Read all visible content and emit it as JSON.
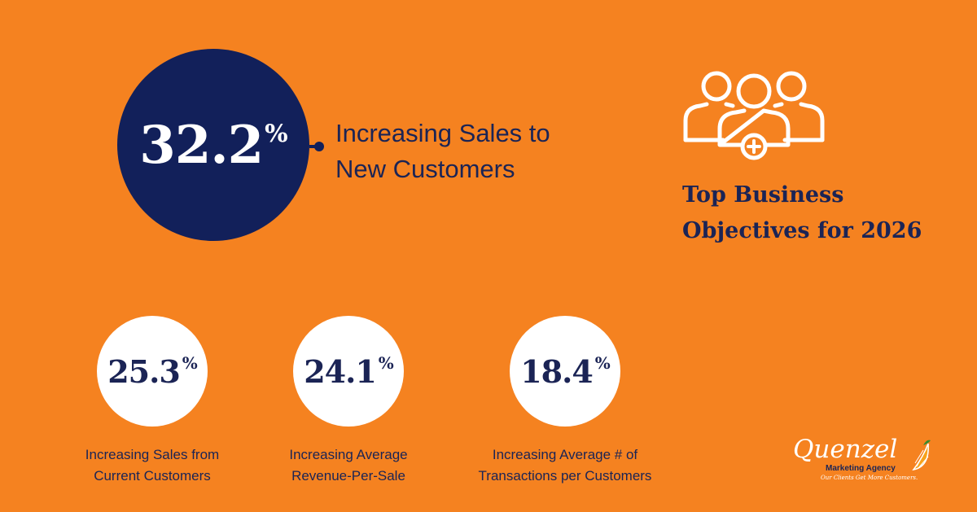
{
  "chart_data": {
    "type": "table",
    "title": "Top Business Objectives for 2026",
    "unit": "%",
    "items": [
      {
        "value": "32.2",
        "label_lines": [
          "Increasing Sales to",
          "New Customers"
        ]
      },
      {
        "value": "25.3",
        "label_lines": [
          "Increasing Sales from",
          "Current Customers"
        ]
      },
      {
        "value": "24.1",
        "label_lines": [
          "Increasing Average",
          "Revenue-Per-Sale"
        ]
      },
      {
        "value": "18.4",
        "label_lines": [
          "Increasing Average # of",
          "Transactions per Customers"
        ]
      }
    ]
  },
  "heading": {
    "line1": "Top Business",
    "line2": "Objectives for 2026"
  },
  "logo": {
    "name": "Quenzel",
    "subtitle": "Marketing Agency",
    "tagline": "Our Clients Get More Customers."
  },
  "icons": {
    "people": "people-group-add-icon",
    "orange": "orange-slice-icon"
  },
  "colors": {
    "background": "#F58220",
    "navy": "#12205A",
    "white": "#FFFFFF"
  }
}
